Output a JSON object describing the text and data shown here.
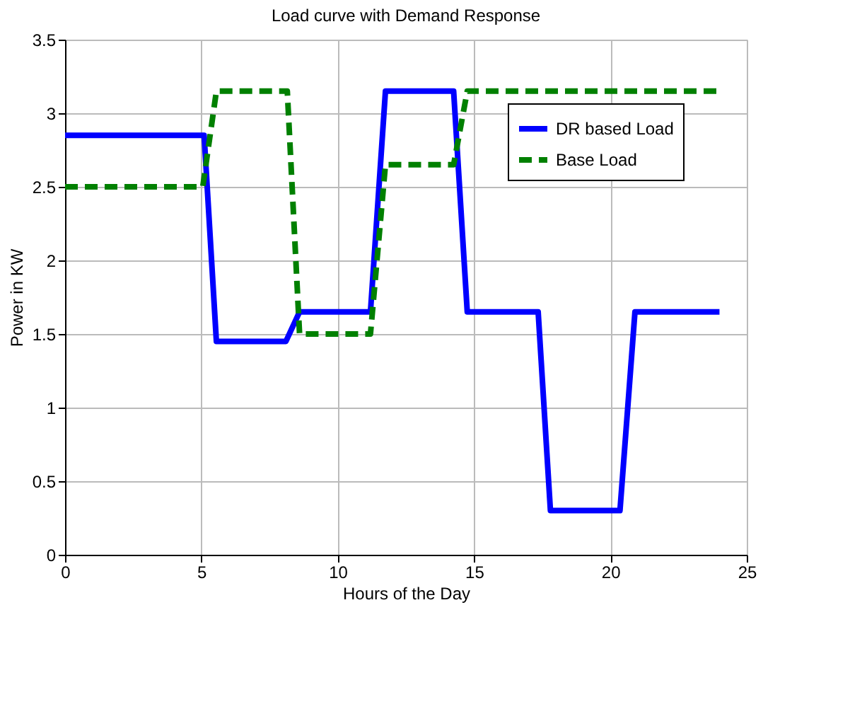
{
  "chart_data": {
    "type": "line",
    "title": "Load curve with Demand Response",
    "xlabel": "Hours of the Day",
    "ylabel": "Power in KW",
    "xlim": [
      0,
      25
    ],
    "xticks": [
      0,
      5,
      10,
      15,
      20,
      25
    ],
    "ylim": [
      0,
      3.5
    ],
    "yticks": [
      0,
      0.5,
      1,
      1.5,
      2,
      2.5,
      3,
      3.5
    ],
    "grid": true,
    "legend": "top right",
    "series": [
      {
        "name": "DR based Load",
        "color": "#0000ff",
        "line_style": "solid",
        "x": [
          0,
          5.1,
          5.55,
          8.1,
          8.6,
          11.2,
          11.75,
          14.25,
          14.75,
          17.35,
          17.8,
          20.35,
          20.9,
          24
        ],
        "values": [
          2.85,
          2.85,
          1.45,
          1.45,
          1.65,
          1.65,
          3.15,
          3.15,
          1.65,
          1.65,
          0.3,
          0.3,
          1.65,
          1.65
        ]
      },
      {
        "name": "Base Load",
        "color": "#008000",
        "line_style": "dashed",
        "x": [
          0,
          5.05,
          5.55,
          8.15,
          8.6,
          11.2,
          11.75,
          14.25,
          14.75,
          24
        ],
        "values": [
          2.5,
          2.5,
          3.15,
          3.15,
          1.5,
          1.5,
          2.65,
          2.65,
          3.15,
          3.15
        ]
      }
    ]
  }
}
